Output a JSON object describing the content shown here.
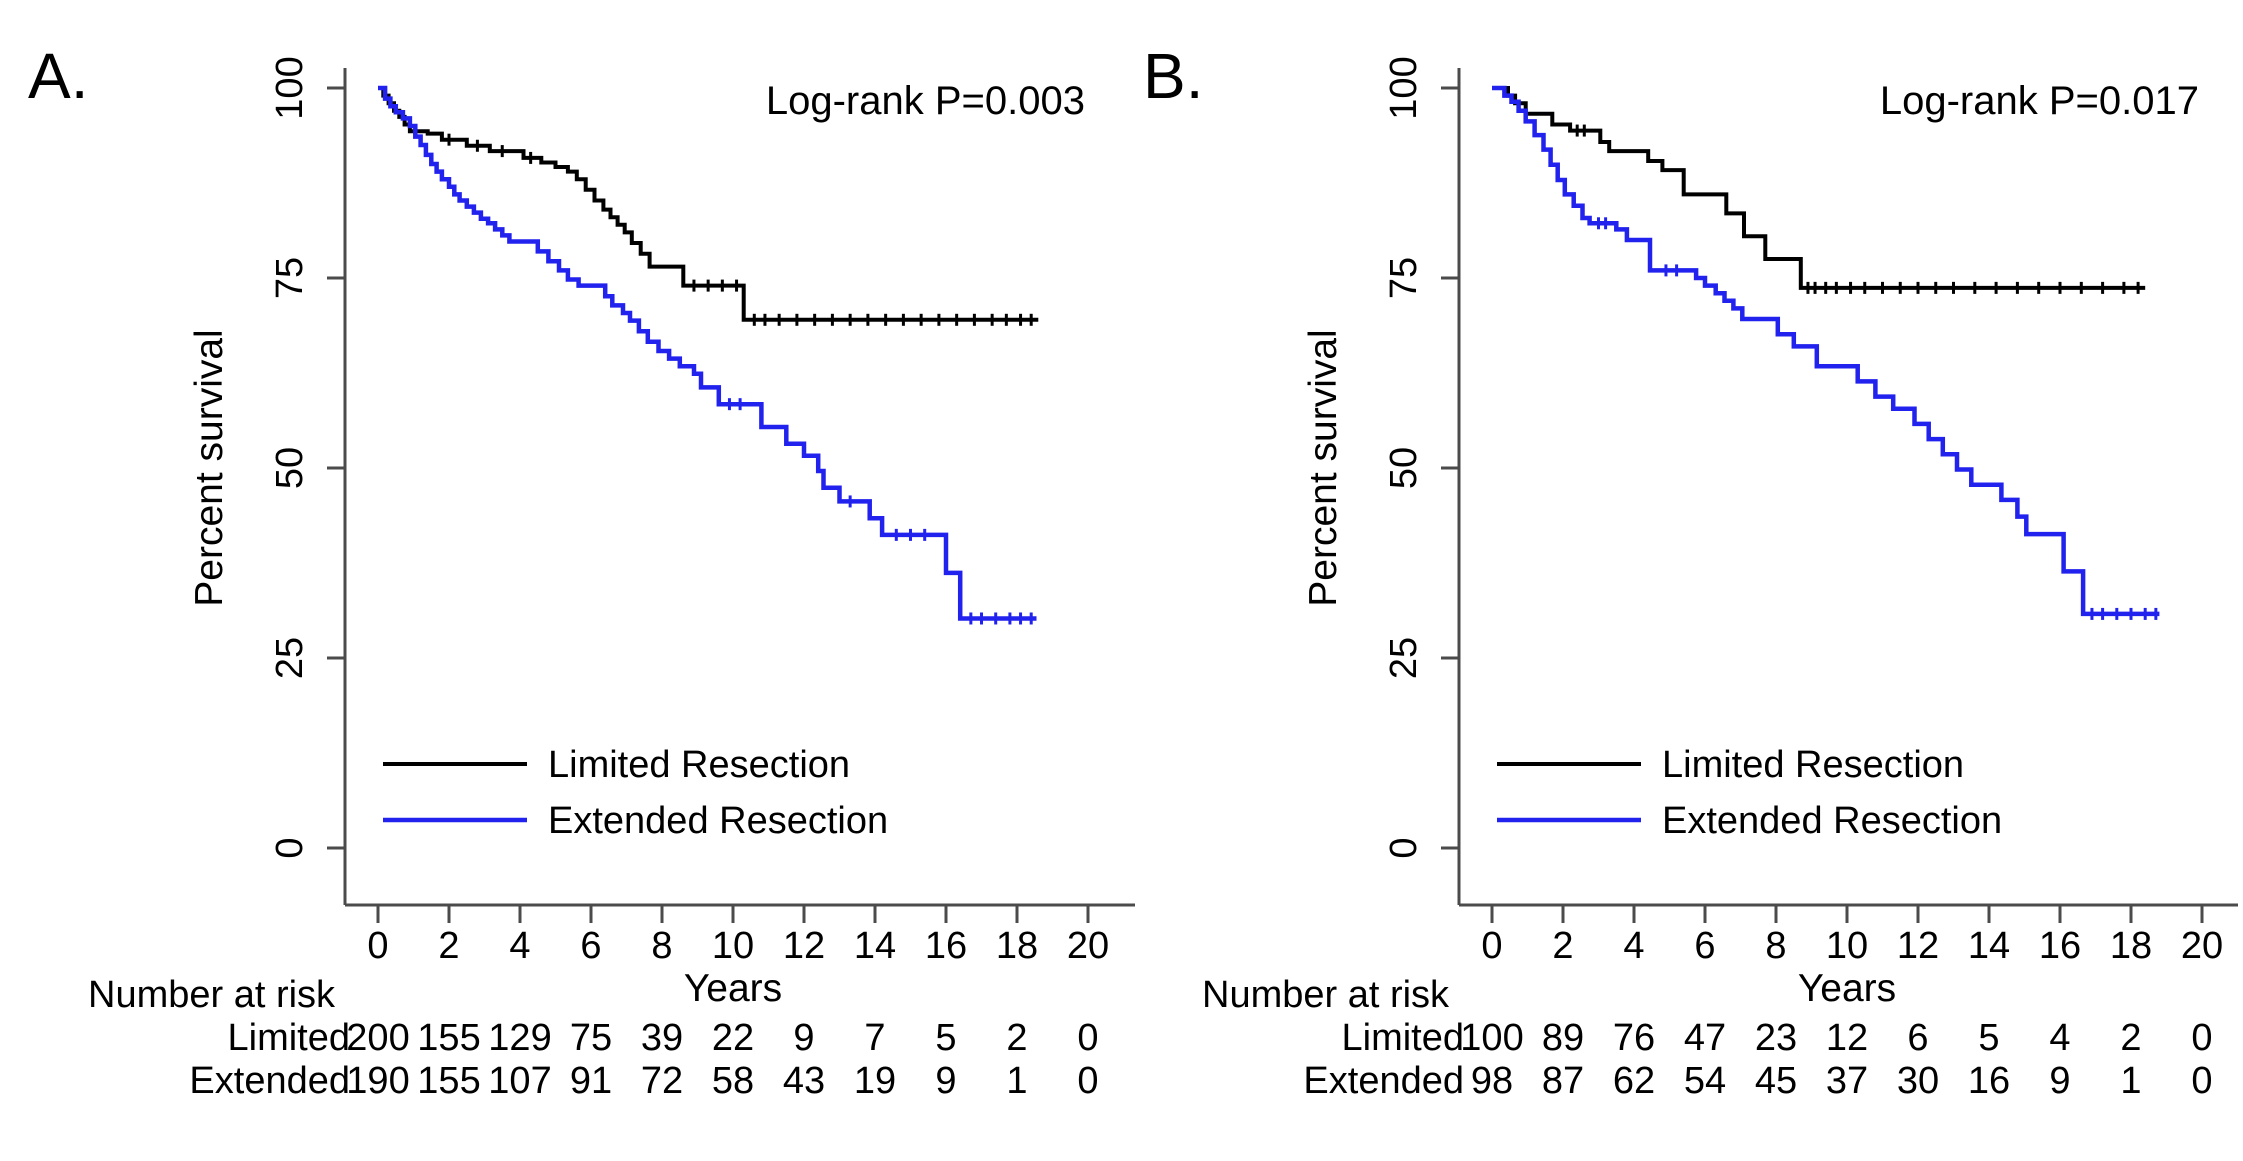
{
  "figure": {
    "background": "#ffffff",
    "curve_colors": {
      "limited": "#000000",
      "extended": "#2222ee"
    }
  },
  "chart_data": [
    {
      "type": "line",
      "subtype": "kaplan-meier-step",
      "panel_label": "A.",
      "annotation": "Log-rank P=0.003",
      "xlabel": "Years",
      "ylabel": "Percent survival",
      "xlim": [
        0,
        20
      ],
      "ylim": [
        0,
        100
      ],
      "xticks": [
        0,
        2,
        4,
        6,
        8,
        10,
        12,
        14,
        16,
        18,
        20
      ],
      "yticks": [
        100,
        75,
        50,
        25,
        0
      ],
      "grid": false,
      "legend_position": "lower-left-inside",
      "series": [
        {
          "name": "Limited Resection",
          "color": "#000000",
          "steps": [
            [
              0,
              100
            ],
            [
              0.15,
              99
            ],
            [
              0.3,
              98
            ],
            [
              0.45,
              97
            ],
            [
              0.6,
              96.2
            ],
            [
              0.75,
              95.2
            ],
            [
              0.9,
              94.3
            ],
            [
              1.4,
              94
            ],
            [
              1.8,
              93.2
            ],
            [
              2.5,
              92.4
            ],
            [
              3.15,
              91.7
            ],
            [
              4.1,
              90.8
            ],
            [
              4.6,
              90.2
            ],
            [
              5.0,
              89.6
            ],
            [
              5.35,
              89
            ],
            [
              5.6,
              88
            ],
            [
              5.85,
              86.6
            ],
            [
              6.1,
              85.2
            ],
            [
              6.35,
              84
            ],
            [
              6.55,
              83
            ],
            [
              6.75,
              82
            ],
            [
              6.95,
              81
            ],
            [
              7.15,
              79.6
            ],
            [
              7.4,
              78.2
            ],
            [
              7.65,
              76.5
            ],
            [
              8.6,
              74
            ],
            [
              10.3,
              69.5
            ],
            [
              18.6,
              69.5
            ]
          ],
          "censor_times": [
            2.0,
            2.8,
            3.5,
            4.3,
            8.9,
            9.3,
            9.7,
            10.1,
            10.6,
            10.9,
            11.3,
            11.8,
            12.3,
            12.8,
            13.3,
            13.8,
            14.3,
            14.8,
            15.3,
            15.8,
            16.3,
            16.8,
            17.3,
            17.7,
            18.1,
            18.4
          ]
        },
        {
          "name": "Extended Resection",
          "color": "#2222ee",
          "steps": [
            [
              0,
              100
            ],
            [
              0.2,
              98.6
            ],
            [
              0.35,
              97.6
            ],
            [
              0.5,
              96.8
            ],
            [
              0.7,
              96
            ],
            [
              0.9,
              95
            ],
            [
              1.05,
              93.6
            ],
            [
              1.2,
              92.5
            ],
            [
              1.35,
              91.2
            ],
            [
              1.5,
              90
            ],
            [
              1.65,
              89
            ],
            [
              1.8,
              88
            ],
            [
              2.0,
              87
            ],
            [
              2.15,
              86
            ],
            [
              2.3,
              85.2
            ],
            [
              2.5,
              84.4
            ],
            [
              2.7,
              83.6
            ],
            [
              2.9,
              82.8
            ],
            [
              3.1,
              82.2
            ],
            [
              3.3,
              81.4
            ],
            [
              3.5,
              80.6
            ],
            [
              3.7,
              79.8
            ],
            [
              4.5,
              78.5
            ],
            [
              4.8,
              77.2
            ],
            [
              5.1,
              76
            ],
            [
              5.35,
              74.8
            ],
            [
              5.65,
              74
            ],
            [
              6.4,
              72.6
            ],
            [
              6.6,
              71.4
            ],
            [
              6.9,
              70.4
            ],
            [
              7.1,
              69.4
            ],
            [
              7.35,
              68
            ],
            [
              7.6,
              66.6
            ],
            [
              7.9,
              65.4
            ],
            [
              8.2,
              64.4
            ],
            [
              8.5,
              63.4
            ],
            [
              8.9,
              62.4
            ],
            [
              9.1,
              60.6
            ],
            [
              9.6,
              58.4
            ],
            [
              10.8,
              55.4
            ],
            [
              11.5,
              53.2
            ],
            [
              12.0,
              51.6
            ],
            [
              12.4,
              49.6
            ],
            [
              12.55,
              47.4
            ],
            [
              13.0,
              45.6
            ],
            [
              13.85,
              43.4
            ],
            [
              14.2,
              41.2
            ],
            [
              16.0,
              36.2
            ],
            [
              16.4,
              30.2
            ],
            [
              18.55,
              30.2
            ]
          ],
          "censor_times": [
            9.9,
            10.2,
            13.3,
            14.6,
            15.0,
            15.4,
            16.7,
            17.0,
            17.4,
            17.8,
            18.1,
            18.4
          ]
        }
      ],
      "risk_table": {
        "title": "Number at risk",
        "times": [
          0,
          2,
          4,
          6,
          8,
          10,
          12,
          14,
          16,
          18,
          20
        ],
        "rows": [
          {
            "label": "Limited",
            "values": [
              200,
              155,
              129,
              75,
              39,
              22,
              9,
              7,
              5,
              2,
              0
            ]
          },
          {
            "label": "Extended",
            "values": [
              190,
              155,
              107,
              91,
              72,
              58,
              43,
              19,
              9,
              1,
              0
            ]
          }
        ]
      }
    },
    {
      "type": "line",
      "subtype": "kaplan-meier-step",
      "panel_label": "B.",
      "annotation": "Log-rank P=0.017",
      "xlabel": "Years",
      "ylabel": "Percent survival",
      "xlim": [
        0,
        20
      ],
      "ylim": [
        0,
        100
      ],
      "xticks": [
        0,
        2,
        4,
        6,
        8,
        10,
        12,
        14,
        16,
        18,
        20
      ],
      "yticks": [
        100,
        75,
        50,
        25,
        0
      ],
      "grid": false,
      "legend_position": "lower-left-inside",
      "series": [
        {
          "name": "Limited Resection",
          "color": "#000000",
          "steps": [
            [
              0,
              100
            ],
            [
              0.45,
              99
            ],
            [
              0.65,
              98
            ],
            [
              0.95,
              96.6
            ],
            [
              1.7,
              95.2
            ],
            [
              2.2,
              94.4
            ],
            [
              3.05,
              92.9
            ],
            [
              3.3,
              91.7
            ],
            [
              4.4,
              90.4
            ],
            [
              4.8,
              89.2
            ],
            [
              5.4,
              86
            ],
            [
              6.6,
              83.5
            ],
            [
              7.1,
              80.5
            ],
            [
              7.7,
              77.5
            ],
            [
              8.7,
              73.7
            ],
            [
              18.4,
              73.7
            ]
          ],
          "censor_times": [
            2.4,
            2.6,
            8.9,
            9.1,
            9.4,
            9.7,
            10.1,
            10.5,
            11.0,
            11.5,
            12.0,
            12.5,
            13.0,
            13.6,
            14.2,
            14.8,
            15.4,
            16.0,
            16.6,
            17.2,
            17.8,
            18.2
          ]
        },
        {
          "name": "Extended Resection",
          "color": "#2222ee",
          "steps": [
            [
              0,
              100
            ],
            [
              0.35,
              99
            ],
            [
              0.55,
              98.2
            ],
            [
              0.75,
              97
            ],
            [
              0.95,
              95.6
            ],
            [
              1.2,
              93.8
            ],
            [
              1.45,
              91.9
            ],
            [
              1.65,
              89.9
            ],
            [
              1.85,
              87.9
            ],
            [
              2.05,
              86
            ],
            [
              2.3,
              84.5
            ],
            [
              2.55,
              82.9
            ],
            [
              2.75,
              82.2
            ],
            [
              3.5,
              81.4
            ],
            [
              3.8,
              80
            ],
            [
              4.45,
              76
            ],
            [
              5.75,
              75
            ],
            [
              6.0,
              74
            ],
            [
              6.3,
              73
            ],
            [
              6.55,
              72
            ],
            [
              6.8,
              71
            ],
            [
              7.05,
              69.6
            ],
            [
              8.05,
              67.6
            ],
            [
              8.5,
              66
            ],
            [
              9.15,
              63.4
            ],
            [
              10.3,
              61.4
            ],
            [
              10.8,
              59.4
            ],
            [
              11.3,
              57.8
            ],
            [
              11.9,
              55.8
            ],
            [
              12.3,
              53.8
            ],
            [
              12.7,
              51.8
            ],
            [
              13.1,
              49.8
            ],
            [
              13.5,
              47.8
            ],
            [
              14.35,
              45.8
            ],
            [
              14.8,
              43.6
            ],
            [
              15.05,
              41.3
            ],
            [
              16.1,
              36.4
            ],
            [
              16.65,
              30.8
            ],
            [
              18.8,
              30.8
            ]
          ],
          "censor_times": [
            3.0,
            3.2,
            4.9,
            5.2,
            16.9,
            17.2,
            17.6,
            18.0,
            18.4,
            18.7
          ]
        }
      ],
      "risk_table": {
        "title": "Number at risk",
        "times": [
          0,
          2,
          4,
          6,
          8,
          10,
          12,
          14,
          16,
          18,
          20
        ],
        "rows": [
          {
            "label": "Limited",
            "values": [
              100,
              89,
              76,
              47,
              23,
              12,
              6,
              5,
              4,
              2,
              0
            ]
          },
          {
            "label": "Extended",
            "values": [
              98,
              87,
              62,
              54,
              45,
              37,
              30,
              16,
              9,
              1,
              0
            ]
          }
        ]
      }
    }
  ]
}
